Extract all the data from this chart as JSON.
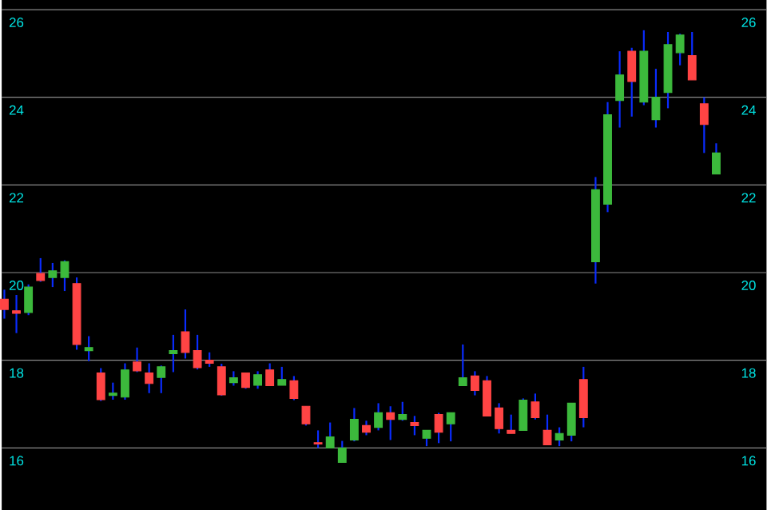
{
  "chart_data": {
    "type": "candlestick",
    "categories": [
      null,
      null,
      null,
      null,
      null,
      null,
      null,
      null,
      null,
      null,
      null,
      null,
      null,
      null,
      null,
      null,
      null,
      null,
      null,
      null,
      null,
      null,
      null,
      null,
      null,
      null,
      null,
      null,
      null,
      null,
      null,
      null,
      null,
      null,
      null,
      null,
      null,
      null,
      null,
      null,
      null,
      null,
      null,
      null,
      null,
      null,
      null,
      null,
      null,
      null,
      null,
      null,
      null,
      null,
      null,
      null,
      null,
      null,
      null,
      null
    ],
    "ohlc": [
      [
        19.39,
        19.61,
        18.95,
        19.16
      ],
      [
        19.13,
        19.49,
        18.62,
        19.07
      ],
      [
        19.09,
        19.73,
        19.03,
        19.67
      ],
      [
        19.98,
        20.33,
        19.79,
        19.82
      ],
      [
        19.89,
        20.22,
        19.67,
        20.04
      ],
      [
        19.89,
        20.28,
        19.58,
        20.25
      ],
      [
        19.75,
        19.89,
        18.24,
        18.36
      ],
      [
        18.22,
        18.55,
        17.98,
        18.29
      ],
      [
        17.71,
        17.82,
        17.07,
        17.1
      ],
      [
        17.2,
        17.49,
        17.1,
        17.25
      ],
      [
        17.16,
        17.93,
        17.1,
        17.78
      ],
      [
        17.96,
        18.29,
        17.73,
        17.76
      ],
      [
        17.71,
        17.93,
        17.25,
        17.47
      ],
      [
        17.61,
        17.88,
        17.25,
        17.85
      ],
      [
        18.15,
        18.58,
        17.73,
        18.22
      ],
      [
        18.65,
        19.16,
        18.04,
        18.18
      ],
      [
        18.22,
        18.58,
        17.79,
        17.83
      ],
      [
        18.0,
        18.18,
        17.85,
        17.93
      ],
      [
        17.85,
        17.92,
        17.19,
        17.21
      ],
      [
        17.49,
        17.75,
        17.42,
        17.6
      ],
      [
        17.71,
        17.71,
        17.35,
        17.38
      ],
      [
        17.43,
        17.75,
        17.35,
        17.67
      ],
      [
        17.78,
        17.93,
        17.42,
        17.42
      ],
      [
        17.43,
        17.85,
        17.43,
        17.56
      ],
      [
        17.53,
        17.64,
        17.09,
        17.13
      ],
      [
        16.95,
        16.95,
        16.51,
        16.55
      ],
      [
        16.12,
        16.4,
        16.0,
        16.09
      ],
      [
        16.0,
        16.58,
        16.0,
        16.25
      ],
      [
        15.67,
        16.16,
        15.67,
        16.0
      ],
      [
        16.18,
        16.91,
        16.15,
        16.65
      ],
      [
        16.51,
        16.62,
        16.29,
        16.36
      ],
      [
        16.47,
        17.02,
        16.4,
        16.8
      ],
      [
        16.8,
        16.95,
        16.18,
        16.65
      ],
      [
        16.65,
        17.05,
        16.62,
        16.76
      ],
      [
        16.58,
        16.73,
        16.29,
        16.51
      ],
      [
        16.22,
        16.4,
        16.04,
        16.4
      ],
      [
        16.76,
        16.8,
        16.11,
        16.36
      ],
      [
        16.55,
        16.8,
        16.15,
        16.8
      ],
      [
        17.42,
        18.36,
        17.42,
        17.6
      ],
      [
        17.64,
        17.75,
        17.2,
        17.31
      ],
      [
        17.53,
        17.64,
        16.73,
        16.73
      ],
      [
        16.91,
        17.02,
        16.33,
        16.44
      ],
      [
        16.4,
        16.76,
        16.33,
        16.33
      ],
      [
        16.4,
        17.13,
        16.4,
        17.09
      ],
      [
        17.05,
        17.24,
        16.65,
        16.69
      ],
      [
        16.4,
        16.76,
        16.07,
        16.07
      ],
      [
        16.18,
        16.47,
        16.04,
        16.33
      ],
      [
        16.29,
        17.02,
        16.15,
        17.02
      ],
      [
        17.56,
        17.85,
        16.47,
        16.69
      ],
      [
        20.25,
        22.18,
        19.75,
        21.89
      ],
      [
        21.56,
        23.89,
        21.38,
        23.6
      ],
      [
        23.93,
        25.05,
        23.31,
        24.51
      ],
      [
        25.05,
        25.13,
        23.56,
        24.36
      ],
      [
        23.89,
        25.53,
        23.82,
        25.05
      ],
      [
        23.49,
        24.65,
        23.31,
        24.0
      ],
      [
        24.11,
        25.49,
        23.75,
        25.2
      ],
      [
        25.02,
        25.45,
        24.73,
        25.42
      ],
      [
        24.95,
        25.49,
        24.4,
        24.4
      ],
      [
        23.85,
        24.0,
        22.73,
        23.38
      ],
      [
        22.25,
        22.95,
        22.25,
        22.73
      ]
    ],
    "colors": [
      "#ff4444",
      "#ff4444",
      "#3cb93c",
      "#ff4444",
      "#3cb93c",
      "#3cb93c",
      "#ff4444",
      "#3cb93c",
      "#ff4444",
      "#3cb93c",
      "#3cb93c",
      "#ff4444",
      "#ff4444",
      "#3cb93c",
      "#3cb93c",
      "#ff4444",
      "#ff4444",
      "#ff4444",
      "#ff4444",
      "#3cb93c",
      "#ff4444",
      "#3cb93c",
      "#ff4444",
      "#3cb93c",
      "#ff4444",
      "#ff4444",
      "#ff4444",
      "#3cb93c",
      "#3cb93c",
      "#3cb93c",
      "#ff4444",
      "#3cb93c",
      "#ff4444",
      "#3cb93c",
      "#ff4444",
      "#3cb93c",
      "#ff4444",
      "#3cb93c",
      "#3cb93c",
      "#ff4444",
      "#ff4444",
      "#ff4444",
      "#ff4444",
      "#3cb93c",
      "#ff4444",
      "#ff4444",
      "#3cb93c",
      "#3cb93c",
      "#ff4444",
      "#3cb93c",
      "#3cb93c",
      "#3cb93c",
      "#ff4444",
      "#3cb93c",
      "#3cb93c",
      "#3cb93c",
      "#3cb93c",
      "#ff4444",
      "#ff4444",
      "#3cb93c"
    ],
    "ylim": [
      14.58,
      26.22
    ],
    "yticks": [
      16,
      18,
      20,
      22,
      24,
      26
    ],
    "y2lim": [
      14.58,
      26.22
    ],
    "y2ticks": [
      16,
      18,
      20,
      22,
      24,
      26
    ],
    "grid": "y"
  }
}
